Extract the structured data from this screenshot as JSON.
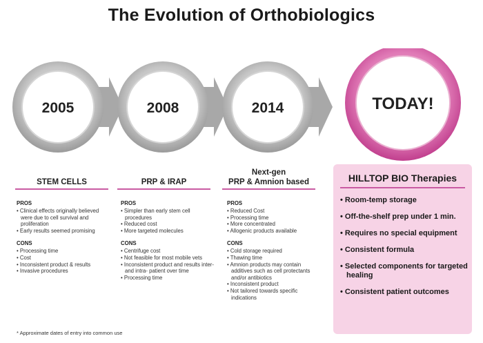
{
  "title": "The Evolution of Orthobiologics",
  "milestones": [
    {
      "label": "2005"
    },
    {
      "label": "2008"
    },
    {
      "label": "2014"
    },
    {
      "label": "TODAY!"
    }
  ],
  "columns": [
    {
      "title": "STEM CELLS",
      "pros_label": "PROS",
      "pros": [
        "Clinical effects originally believed were due to cell survival and proliferation",
        "Early results seemed promising"
      ],
      "cons_label": "CONS",
      "cons": [
        "Processing time",
        "Cost",
        "Inconsistent product & results",
        "Invasive procedures"
      ]
    },
    {
      "title": "PRP & IRAP",
      "pros_label": "PROS",
      "pros": [
        "Simpler than early stem cell procedures",
        "Reduced cost",
        "More targeted molecules"
      ],
      "cons_label": "CONS",
      "cons": [
        "Centrifuge cost",
        "Not feasible for most mobile vets",
        "Inconsistent product and results inter- and intra- patient over time",
        "Processing time"
      ]
    },
    {
      "title_line1": "Next-gen",
      "title_line2": "PRP & Amnion based",
      "pros_label": "PROS",
      "pros": [
        "Reduced Cost",
        "Processing time",
        "More concentrated",
        "Allogenic products available"
      ],
      "cons_label": "CONS",
      "cons": [
        "Cold storage required",
        "Thawing time",
        "Amnion products may contain additives such as cell protectants and/or antibiotics",
        "Inconsistent product",
        "Not tailored towards specific indications"
      ]
    }
  ],
  "hilltop": {
    "title": "HILLTOP BIO Therapies",
    "items": [
      "Room-temp storage",
      "Off-the-shelf prep under 1 min.",
      "Requires no special equipment",
      "Consistent formula",
      "Selected components for targeted healing",
      "Consistent patient outcomes"
    ]
  },
  "footnote": "* Approximate dates of entry into common use",
  "colors": {
    "accent": "#c95aa2",
    "pink_fill": "#f7d3e6",
    "ring_gray": "#b3b3b3",
    "arrow_gray": "#a8a8a8"
  }
}
